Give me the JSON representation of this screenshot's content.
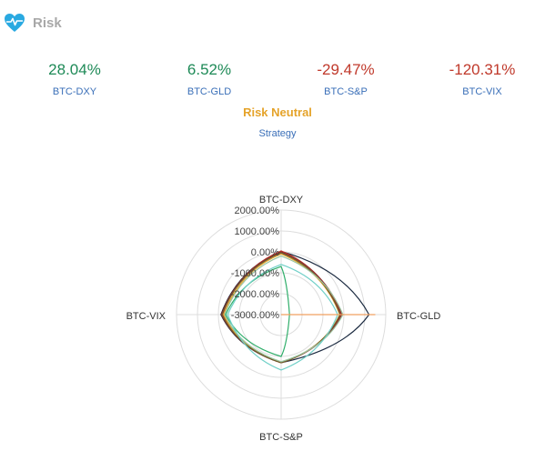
{
  "header": {
    "title": "Risk",
    "icon": "heart-pulse-icon",
    "icon_color": "#29a9e1"
  },
  "metrics": [
    {
      "value": "28.04%",
      "label": "BTC-DXY",
      "status": "positive"
    },
    {
      "value": "6.52%",
      "label": "BTC-GLD",
      "status": "positive"
    },
    {
      "value": "-29.47%",
      "label": "BTC-S&P",
      "status": "negative"
    },
    {
      "value": "-120.31%",
      "label": "BTC-VIX",
      "status": "negative"
    }
  ],
  "strategy": {
    "name": "Risk Neutral",
    "label": "Strategy"
  },
  "colors": {
    "positive": "#1e8a57",
    "negative": "#c0392b",
    "label_blue": "#3a6fb8",
    "accent": "#e5a32a"
  },
  "chart_data": {
    "type": "radar",
    "axes": [
      "BTC-DXY",
      "BTC-GLD",
      "BTC-S&P",
      "BTC-VIX"
    ],
    "radial_tick_labels": [
      "2000.00%",
      "1000.00%",
      "0.00%",
      "-1000.00%",
      "-2000.00%",
      "-3000.00%"
    ],
    "rmin": -3000,
    "rmax": 2000,
    "grid": true,
    "series": [
      {
        "color": "#1b2a40",
        "values": [
          28.04,
          1200,
          -700,
          -120.31
        ]
      },
      {
        "color": "#c0392b",
        "values": [
          50,
          -150,
          -700,
          -200
        ]
      },
      {
        "color": "#8a2b2b",
        "values": [
          0,
          -100,
          -700,
          -150
        ]
      },
      {
        "color": "#e5a32a",
        "values": [
          -100,
          -200,
          -700,
          -250
        ]
      },
      {
        "color": "#6b5a2e",
        "values": [
          -50,
          -180,
          -700,
          -180
        ]
      },
      {
        "color": "#9ac5a0",
        "values": [
          -200,
          -50,
          -750,
          -300
        ]
      },
      {
        "color": "#2fae6a",
        "values": [
          -700,
          -2600,
          -1000,
          -350
        ]
      },
      {
        "color": "#70d0c8",
        "values": [
          -600,
          -300,
          -350,
          -450
        ]
      },
      {
        "color": "#f0a060",
        "values": [
          -3000,
          1500,
          -3000,
          -3000
        ]
      }
    ]
  }
}
